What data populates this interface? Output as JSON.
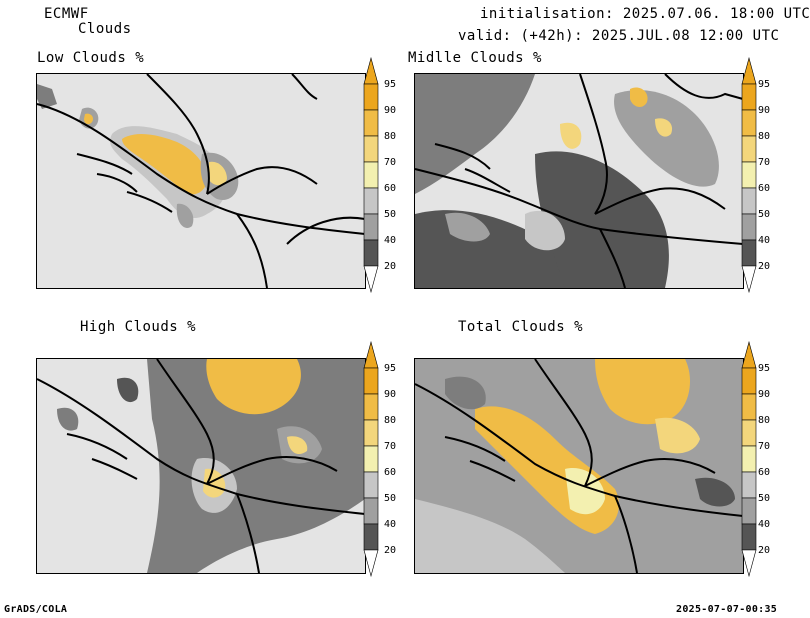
{
  "header": {
    "model": "ECMWF",
    "product": "Clouds",
    "init": "initialisation: 2025.07.06. 18:00 UTC",
    "valid": "valid: (+42h): 2025.JUL.08 12:00 UTC"
  },
  "panels": [
    {
      "id": "low",
      "title": "Low Clouds %"
    },
    {
      "id": "mid",
      "title": "Midlle Clouds %"
    },
    {
      "id": "high",
      "title": "High Clouds %"
    },
    {
      "id": "total",
      "title": "Total Clouds %"
    }
  ],
  "colorbar": {
    "levels": [
      "20",
      "40",
      "50",
      "60",
      "70",
      "80",
      "90",
      "95"
    ],
    "colors": [
      "#ffffff",
      "#555555",
      "#7d7d7d",
      "#a0a0a0",
      "#c6c6c6",
      "#f3f0b0",
      "#f3d67c",
      "#f0bc46",
      "#eca61e"
    ]
  },
  "footer": {
    "left": "GrADS/COLA",
    "right": "2025-07-07-00:35"
  }
}
